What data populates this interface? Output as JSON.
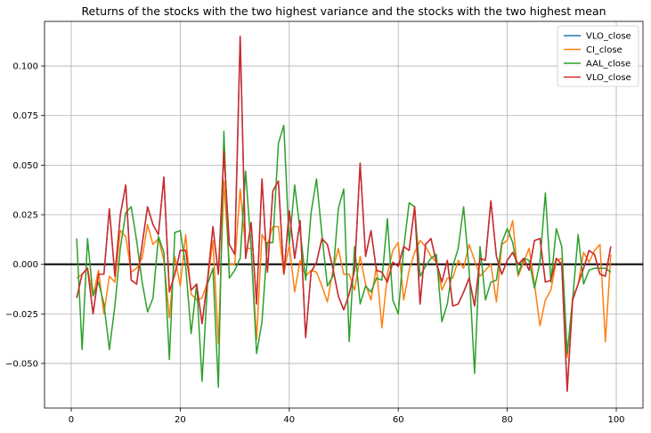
{
  "chart_data": {
    "type": "line",
    "title": "Returns of the stocks with the two highest variance and the stocks with the two highest mean",
    "xlabel": "",
    "ylabel": "",
    "xlim": [
      -4.9,
      104.9
    ],
    "ylim": [
      -0.0725,
      0.1225
    ],
    "xticks": [
      0,
      20,
      40,
      60,
      80,
      100
    ],
    "yticks": [
      -0.05,
      -0.025,
      0.0,
      0.025,
      0.05,
      0.075,
      0.1
    ],
    "ytick_labels": [
      "−0.050",
      "−0.025",
      "0.000",
      "0.025",
      "0.050",
      "0.075",
      "0.100"
    ],
    "grid": true,
    "legend_position": "top-right",
    "hline": {
      "y": 0,
      "color": "#000000"
    },
    "series": [
      {
        "name": "VLO_close",
        "color": "#1f77b4",
        "x": [
          1,
          2,
          3,
          4,
          5,
          6,
          7,
          8,
          9,
          10,
          11,
          12,
          13,
          14,
          15,
          16,
          17,
          18,
          19,
          20,
          21,
          22,
          23,
          24,
          25,
          26,
          27,
          28,
          29,
          30,
          31,
          32,
          33,
          34,
          35,
          36,
          37,
          38,
          39,
          40,
          41,
          42,
          43,
          44,
          45,
          46,
          47,
          48,
          49,
          50,
          51,
          52,
          53,
          54,
          55,
          56,
          57,
          58,
          59,
          60,
          61,
          62,
          63,
          64,
          65,
          66,
          67,
          68,
          69,
          70,
          71,
          72,
          73,
          74,
          75,
          76,
          77,
          78,
          79,
          80,
          81,
          82,
          83,
          84,
          85,
          86,
          87,
          88,
          89,
          90,
          91,
          92,
          93,
          94,
          95,
          96,
          97,
          98,
          99
        ],
        "y": [
          -0.017,
          -0.005,
          -0.002,
          -0.025,
          -0.005,
          -0.005,
          0.028,
          -0.006,
          0.025,
          0.04,
          -0.008,
          -0.01,
          0.01,
          0.029,
          0.02,
          0.015,
          0.044,
          -0.014,
          -0.005,
          0.007,
          0.007,
          -0.013,
          -0.01,
          -0.03,
          -0.008,
          0.019,
          -0.005,
          0.057,
          0.01,
          0.005,
          0.115,
          0.003,
          0.021,
          -0.02,
          0.043,
          -0.004,
          0.037,
          0.042,
          -0.005,
          0.027,
          0.003,
          0.022,
          -0.037,
          -0.004,
          0.001,
          0.013,
          0.01,
          -0.002,
          -0.016,
          -0.023,
          -0.015,
          -0.003,
          0.051,
          0.004,
          0.017,
          -0.003,
          -0.004,
          -0.009,
          0.001,
          -0.001,
          0.009,
          0.007,
          0.029,
          -0.02,
          0.01,
          0.013,
          0.001,
          -0.009,
          0.002,
          -0.021,
          -0.02,
          -0.014,
          -0.007,
          -0.021,
          0.003,
          0.002,
          0.032,
          0.004,
          -0.005,
          0.002,
          0.006,
          0.0,
          0.003,
          -0.003,
          0.012,
          0.013,
          -0.009,
          -0.008,
          0.003,
          0.0,
          -0.064,
          -0.018,
          -0.01,
          -0.002,
          0.007,
          0.005,
          -0.005,
          -0.006,
          0.009
        ]
      },
      {
        "name": "CI_close",
        "color": "#ff7f0e",
        "x": [
          1,
          2,
          3,
          4,
          5,
          6,
          7,
          8,
          9,
          10,
          11,
          12,
          13,
          14,
          15,
          16,
          17,
          18,
          19,
          20,
          21,
          22,
          23,
          24,
          25,
          26,
          27,
          28,
          29,
          30,
          31,
          32,
          33,
          34,
          35,
          36,
          37,
          38,
          39,
          40,
          41,
          42,
          43,
          44,
          45,
          46,
          47,
          48,
          49,
          50,
          51,
          52,
          53,
          54,
          55,
          56,
          57,
          58,
          59,
          60,
          61,
          62,
          63,
          64,
          65,
          66,
          67,
          68,
          69,
          70,
          71,
          72,
          73,
          74,
          75,
          76,
          77,
          78,
          79,
          80,
          81,
          82,
          83,
          84,
          85,
          86,
          87,
          88,
          89,
          90,
          91,
          92,
          93,
          94,
          95,
          96,
          97,
          98,
          99
        ],
        "y": [
          -0.007,
          -0.005,
          -0.002,
          -0.016,
          -0.003,
          -0.025,
          -0.006,
          -0.009,
          0.017,
          0.014,
          -0.004,
          -0.002,
          0.003,
          0.02,
          0.01,
          0.013,
          0.002,
          -0.027,
          0.004,
          -0.011,
          0.015,
          -0.015,
          -0.018,
          -0.017,
          -0.009,
          0.012,
          -0.04,
          0.042,
          0.0,
          0.0,
          0.038,
          0.008,
          0.008,
          -0.038,
          0.015,
          0.01,
          0.019,
          0.019,
          -0.005,
          0.01,
          -0.014,
          0.002,
          -0.006,
          -0.003,
          -0.004,
          -0.011,
          -0.019,
          -0.003,
          0.008,
          -0.005,
          -0.005,
          -0.013,
          0.004,
          -0.01,
          -0.018,
          -0.001,
          -0.032,
          -0.005,
          0.007,
          0.011,
          -0.018,
          -0.003,
          0.006,
          0.012,
          0.009,
          0.004,
          0.001,
          -0.013,
          -0.007,
          -0.007,
          0.002,
          -0.002,
          0.01,
          0.002,
          -0.006,
          -0.003,
          0.0,
          -0.019,
          0.01,
          0.012,
          0.022,
          -0.006,
          0.001,
          0.008,
          -0.01,
          -0.031,
          -0.018,
          -0.013,
          0.002,
          0.003,
          -0.047,
          -0.017,
          -0.01,
          0.006,
          0.001,
          0.007,
          0.01,
          -0.039,
          0.005
        ]
      },
      {
        "name": "AAL_close",
        "color": "#2ca02c",
        "x": [
          1,
          2,
          3,
          4,
          5,
          6,
          7,
          8,
          9,
          10,
          11,
          12,
          13,
          14,
          15,
          16,
          17,
          18,
          19,
          20,
          21,
          22,
          23,
          24,
          25,
          26,
          27,
          28,
          29,
          30,
          31,
          32,
          33,
          34,
          35,
          36,
          37,
          38,
          39,
          40,
          41,
          42,
          43,
          44,
          45,
          46,
          47,
          48,
          49,
          50,
          51,
          52,
          53,
          54,
          55,
          56,
          57,
          58,
          59,
          60,
          61,
          62,
          63,
          64,
          65,
          66,
          67,
          68,
          69,
          70,
          71,
          72,
          73,
          74,
          75,
          76,
          77,
          78,
          79,
          80,
          81,
          82,
          83,
          84,
          85,
          86,
          87,
          88,
          89,
          90,
          91,
          92,
          93,
          94,
          95,
          96,
          97,
          98,
          99
        ],
        "y": [
          0.013,
          -0.043,
          0.013,
          -0.016,
          -0.009,
          -0.02,
          -0.043,
          -0.021,
          0.008,
          0.026,
          0.029,
          0.012,
          -0.009,
          -0.024,
          -0.017,
          0.014,
          0.006,
          -0.048,
          0.016,
          0.017,
          -0.001,
          -0.035,
          -0.01,
          -0.059,
          -0.01,
          -0.002,
          -0.062,
          0.067,
          -0.007,
          -0.003,
          0.003,
          0.047,
          0.008,
          -0.045,
          -0.029,
          0.011,
          0.011,
          0.061,
          0.07,
          0.01,
          0.04,
          0.017,
          -0.008,
          0.026,
          0.043,
          0.015,
          -0.011,
          -0.006,
          0.028,
          0.038,
          -0.039,
          0.009,
          -0.02,
          -0.011,
          -0.014,
          -0.007,
          -0.008,
          0.023,
          -0.018,
          -0.025,
          0.008,
          0.031,
          0.029,
          -0.006,
          -0.001,
          0.003,
          0.005,
          -0.029,
          -0.02,
          -0.001,
          0.008,
          0.029,
          -0.003,
          -0.055,
          0.009,
          -0.018,
          -0.009,
          -0.008,
          0.011,
          0.018,
          0.011,
          -0.005,
          0.003,
          0.002,
          -0.012,
          0.001,
          0.036,
          -0.009,
          0.018,
          0.009,
          -0.045,
          -0.018,
          0.015,
          -0.01,
          -0.003,
          -0.002,
          -0.002,
          -0.002,
          -0.004
        ]
      },
      {
        "name": "VLO_close",
        "color": "#d62728",
        "x": [
          1,
          2,
          3,
          4,
          5,
          6,
          7,
          8,
          9,
          10,
          11,
          12,
          13,
          14,
          15,
          16,
          17,
          18,
          19,
          20,
          21,
          22,
          23,
          24,
          25,
          26,
          27,
          28,
          29,
          30,
          31,
          32,
          33,
          34,
          35,
          36,
          37,
          38,
          39,
          40,
          41,
          42,
          43,
          44,
          45,
          46,
          47,
          48,
          49,
          50,
          51,
          52,
          53,
          54,
          55,
          56,
          57,
          58,
          59,
          60,
          61,
          62,
          63,
          64,
          65,
          66,
          67,
          68,
          69,
          70,
          71,
          72,
          73,
          74,
          75,
          76,
          77,
          78,
          79,
          80,
          81,
          82,
          83,
          84,
          85,
          86,
          87,
          88,
          89,
          90,
          91,
          92,
          93,
          94,
          95,
          96,
          97,
          98,
          99
        ],
        "y": [
          -0.017,
          -0.005,
          -0.002,
          -0.025,
          -0.005,
          -0.005,
          0.028,
          -0.006,
          0.025,
          0.04,
          -0.008,
          -0.01,
          0.01,
          0.029,
          0.02,
          0.015,
          0.044,
          -0.014,
          -0.005,
          0.007,
          0.007,
          -0.013,
          -0.01,
          -0.03,
          -0.008,
          0.019,
          -0.005,
          0.057,
          0.01,
          0.005,
          0.115,
          0.003,
          0.021,
          -0.02,
          0.043,
          -0.004,
          0.037,
          0.042,
          -0.005,
          0.027,
          0.003,
          0.022,
          -0.037,
          -0.004,
          0.001,
          0.013,
          0.01,
          -0.002,
          -0.016,
          -0.023,
          -0.015,
          -0.003,
          0.051,
          0.004,
          0.017,
          -0.003,
          -0.004,
          -0.009,
          0.001,
          -0.001,
          0.009,
          0.007,
          0.029,
          -0.02,
          0.01,
          0.013,
          0.001,
          -0.009,
          0.002,
          -0.021,
          -0.02,
          -0.014,
          -0.007,
          -0.021,
          0.003,
          0.002,
          0.032,
          0.004,
          -0.005,
          0.002,
          0.006,
          0.0,
          0.003,
          -0.003,
          0.012,
          0.013,
          -0.009,
          -0.008,
          0.003,
          0.0,
          -0.064,
          -0.018,
          -0.01,
          -0.002,
          0.007,
          0.005,
          -0.005,
          -0.006,
          0.009
        ]
      }
    ]
  }
}
